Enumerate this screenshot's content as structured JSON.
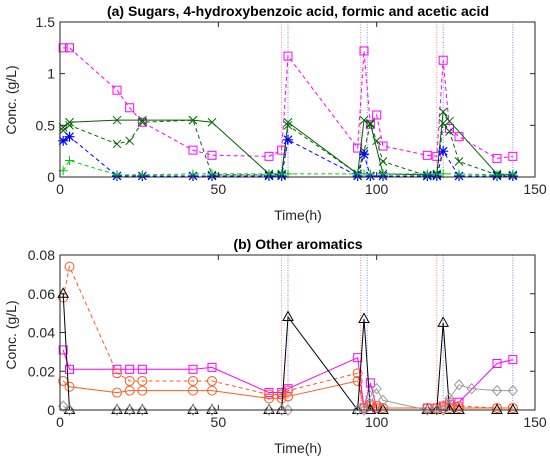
{
  "chart_data": [
    {
      "type": "line",
      "title": "(a) Sugars, 4-hydroxybenzoic acid, formic and acetic acid",
      "xlabel": "Time(h)",
      "ylabel": "Conc. (g/L)",
      "xlim": [
        0,
        150
      ],
      "ylim": [
        0,
        1.5
      ],
      "xticks": [
        "0",
        "50",
        "100",
        "150"
      ],
      "yticks": [
        "0",
        "0.5",
        "1",
        "1.5"
      ],
      "vlines": [
        {
          "x": 70,
          "color": "#ff6666"
        },
        {
          "x": 72,
          "color": "#6666ff"
        },
        {
          "x": 95,
          "color": "#ff6666"
        },
        {
          "x": 97,
          "color": "#6666ff"
        },
        {
          "x": 119,
          "color": "#ff6666"
        },
        {
          "x": 121,
          "color": "#6666ff"
        },
        {
          "x": 143,
          "color": "#6666ff"
        }
      ],
      "series": [
        {
          "color": "#ff00ff",
          "marker": "square",
          "dash": "4,3",
          "x": [
            1,
            3,
            18,
            22,
            26,
            42,
            48,
            66,
            70,
            72,
            94,
            96,
            98,
            100,
            102,
            116,
            119,
            121,
            123,
            126,
            138,
            143
          ],
          "y": [
            1.25,
            1.25,
            0.84,
            0.67,
            0.53,
            0.26,
            0.21,
            0.2,
            0.26,
            1.17,
            0.28,
            1.22,
            0.51,
            0.6,
            0.3,
            0.21,
            0.2,
            1.13,
            0.47,
            0.39,
            0.18,
            0.2
          ]
        },
        {
          "color": "#006400",
          "marker": "x",
          "dash": "",
          "x": [
            1,
            3,
            18,
            26,
            42,
            48,
            66,
            70,
            72,
            94,
            96,
            98,
            102,
            116,
            119,
            121,
            123,
            138,
            143
          ],
          "y": [
            0.48,
            0.53,
            0.55,
            0.55,
            0.55,
            0.53,
            0.03,
            0.03,
            0.53,
            0.03,
            0.55,
            0.52,
            0.03,
            0.02,
            0.03,
            0.63,
            0.54,
            0.03,
            0.02
          ]
        },
        {
          "color": "#006400",
          "marker": "x",
          "dash": "4,3",
          "x": [
            1,
            3,
            18,
            22,
            26,
            42,
            48,
            66,
            70,
            72,
            94,
            96,
            98,
            100,
            102,
            116,
            119,
            121,
            123,
            126,
            138,
            143
          ],
          "y": [
            0.45,
            0.5,
            0.32,
            0.35,
            0.53,
            0.55,
            0.02,
            0.02,
            0.02,
            0.5,
            0.03,
            0.25,
            0.51,
            0.35,
            0.15,
            0.01,
            0.02,
            0.52,
            0.44,
            0.15,
            0.02,
            0.02
          ]
        },
        {
          "color": "#0000ff",
          "marker": "star",
          "dash": "4,3",
          "x": [
            1,
            3,
            18,
            26,
            42,
            48,
            66,
            70,
            72,
            94,
            96,
            98,
            102,
            116,
            119,
            121,
            126,
            138,
            143
          ],
          "y": [
            0.35,
            0.39,
            0.01,
            0.01,
            0.01,
            0.01,
            0.01,
            0.01,
            0.36,
            0.01,
            0.22,
            0.01,
            0.01,
            0.01,
            0.01,
            0.25,
            0.01,
            0.01,
            0.01
          ]
        },
        {
          "color": "#00cc00",
          "marker": "plus",
          "dash": "4,3",
          "x": [
            1,
            3,
            18,
            26,
            42,
            48,
            66,
            70,
            72,
            94,
            96,
            98,
            102,
            116,
            119,
            121,
            126,
            138,
            143
          ],
          "y": [
            0.06,
            0.16,
            0.02,
            0.02,
            0.03,
            0.03,
            0.03,
            0.03,
            0.03,
            0.03,
            0.03,
            0.03,
            0.03,
            0.03,
            0.03,
            0.03,
            0.03,
            0.02,
            0.03
          ]
        }
      ]
    },
    {
      "type": "line",
      "title": "(b) Other aromatics",
      "xlabel": "Time(h)",
      "ylabel": "Conc. (g/L)",
      "xlim": [
        0,
        150
      ],
      "ylim": [
        0,
        0.08
      ],
      "xticks": [
        "0",
        "50",
        "100",
        "150"
      ],
      "yticks": [
        "0",
        "0.02",
        "0.04",
        "0.06",
        "0.08"
      ],
      "vlines": [
        {
          "x": 70,
          "color": "#ff6666"
        },
        {
          "x": 72,
          "color": "#6666ff"
        },
        {
          "x": 95,
          "color": "#ff6666"
        },
        {
          "x": 97,
          "color": "#6666ff"
        },
        {
          "x": 119,
          "color": "#ff6666"
        },
        {
          "x": 121,
          "color": "#6666ff"
        },
        {
          "x": 143,
          "color": "#6666ff"
        }
      ],
      "series": [
        {
          "color": "#ff00ff",
          "marker": "square",
          "dash": "",
          "x": [
            1,
            3,
            18,
            22,
            26,
            42,
            48,
            66,
            70,
            72,
            94,
            96,
            98,
            100,
            116,
            119,
            121,
            123,
            126,
            138,
            143
          ],
          "y": [
            0.031,
            0.021,
            0.021,
            0.021,
            0.021,
            0.021,
            0.022,
            0.009,
            0.009,
            0.011,
            0.027,
            0.001,
            0.014,
            0.001,
            0.001,
            0.001,
            0.002,
            0.003,
            0.004,
            0.024,
            0.026
          ]
        },
        {
          "color": "#ff5a1e",
          "marker": "circle",
          "dash": "4,3",
          "x": [
            1,
            3,
            18,
            22,
            26,
            42,
            48,
            66,
            70,
            72,
            94,
            96,
            98,
            100,
            102,
            116,
            119,
            121,
            123,
            126,
            138,
            143
          ],
          "y": [
            0.058,
            0.074,
            0.019,
            0.015,
            0.015,
            0.015,
            0.015,
            0.008,
            0.008,
            0.01,
            0.019,
            0.001,
            0.003,
            0.002,
            0.001,
            0.001,
            0.001,
            0.002,
            0.004,
            0.002,
            0.001,
            0.001
          ]
        },
        {
          "color": "#ff5a1e",
          "marker": "circle",
          "dash": "",
          "x": [
            1,
            3,
            18,
            22,
            26,
            42,
            48,
            66,
            70,
            72,
            94,
            96,
            98,
            100,
            102,
            116,
            119,
            121,
            123,
            126,
            138,
            143
          ],
          "y": [
            0.015,
            0.012,
            0.009,
            0.01,
            0.01,
            0.01,
            0.01,
            0.006,
            0.006,
            0.007,
            0.015,
            0.001,
            0.002,
            0.001,
            0.001,
            0.001,
            0.001,
            0.001,
            0.001,
            0.001,
            0.001,
            0.001
          ]
        },
        {
          "color": "#000000",
          "marker": "triangle",
          "dash": "",
          "x": [
            1,
            3,
            18,
            22,
            26,
            42,
            48,
            66,
            70,
            72,
            94,
            96,
            98,
            102,
            116,
            119,
            121,
            123,
            126,
            138,
            143
          ],
          "y": [
            0.06,
            0.0,
            0.0,
            0.0,
            0.0,
            0.0,
            0.0,
            0.0,
            0.0,
            0.048,
            0.0,
            0.047,
            0.0,
            0.0,
            0.0,
            0.0,
            0.045,
            0.0,
            0.0,
            0.0,
            0.0
          ]
        },
        {
          "color": "#999999",
          "marker": "diamond",
          "dash": "",
          "x": [
            1,
            3,
            18,
            22,
            26,
            42,
            48,
            66,
            70,
            72,
            94,
            96,
            98,
            100,
            102,
            116,
            119,
            121,
            123,
            126,
            130,
            138,
            143
          ],
          "y": [
            0.002,
            0.0,
            0.0,
            0.0,
            0.0,
            0.0,
            0.0,
            0.0,
            0.0,
            0.0,
            0.0,
            0.0,
            0.007,
            0.011,
            0.005,
            0.0,
            0.0,
            0.0,
            0.006,
            0.013,
            0.011,
            0.01,
            0.01
          ]
        },
        {
          "color": "#0000ff",
          "marker": "none",
          "dash": "",
          "x": [
            1,
            3,
            48,
            66,
            70,
            72,
            94,
            96,
            98,
            116,
            119,
            121,
            138,
            143
          ],
          "y": [
            0,
            0,
            0,
            0,
            0,
            0,
            0,
            0,
            0,
            0,
            0,
            0,
            0,
            0
          ]
        }
      ]
    }
  ]
}
